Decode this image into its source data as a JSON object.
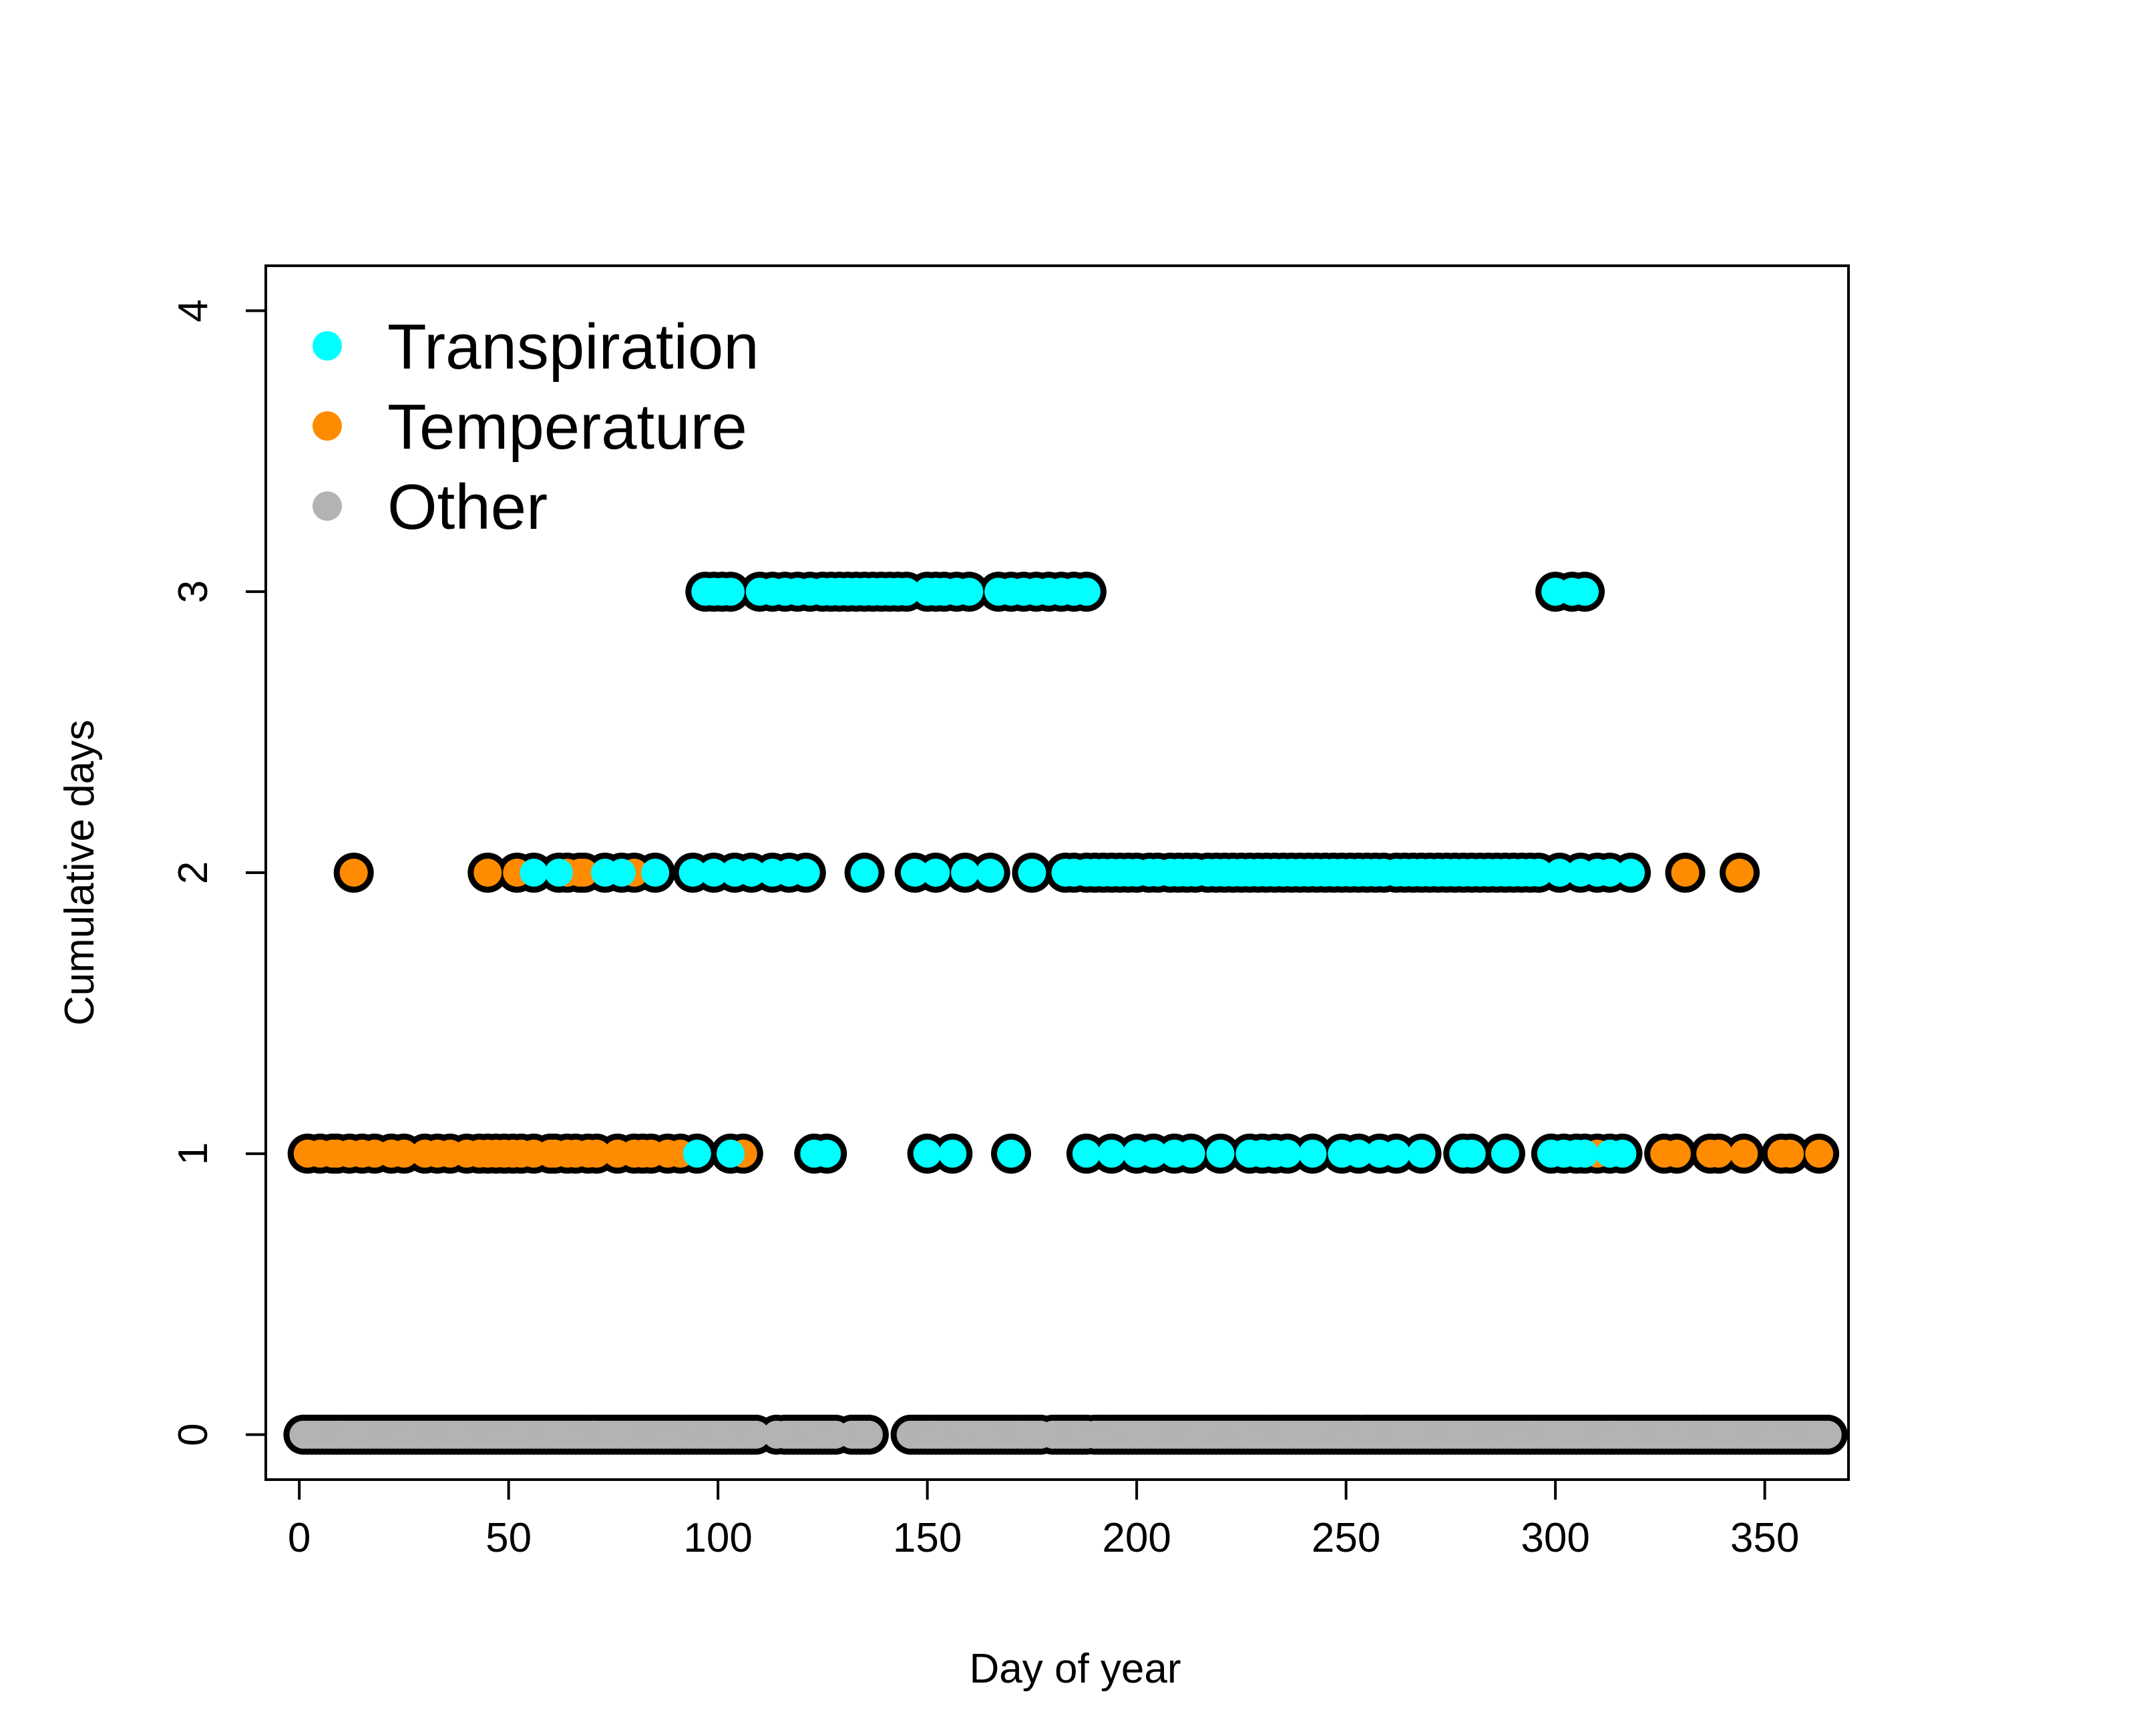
{
  "chart_data": {
    "type": "scatter",
    "title": "",
    "xlabel": "Day of year",
    "ylabel": "Cumulative days",
    "xlim": [
      -8,
      370
    ],
    "ylim": [
      -0.16,
      4.16
    ],
    "x_ticks": [
      0,
      50,
      100,
      150,
      200,
      250,
      300,
      350
    ],
    "y_ticks": [
      0,
      1,
      2,
      3,
      4
    ],
    "grid": false,
    "legend": {
      "position": "top-left",
      "entries": [
        {
          "label": "Transpiration",
          "color": "#00ffff"
        },
        {
          "label": "Temperature",
          "color": "#ff8c00"
        },
        {
          "label": "Other",
          "color": "#b3b3b3"
        }
      ]
    },
    "outline_color": "#000000",
    "series": [
      {
        "name": "Other",
        "color": "#b3b3b3",
        "y": 0,
        "x": [
          1,
          2,
          3,
          4,
          5,
          6,
          7,
          8,
          9,
          10,
          11,
          12,
          13,
          14,
          15,
          16,
          17,
          18,
          19,
          20,
          21,
          22,
          23,
          24,
          25,
          26,
          27,
          28,
          29,
          30,
          31,
          32,
          33,
          34,
          35,
          36,
          37,
          38,
          39,
          40,
          41,
          42,
          43,
          44,
          45,
          46,
          47,
          48,
          49,
          50,
          51,
          52,
          53,
          54,
          55,
          56,
          57,
          58,
          59,
          60,
          61,
          62,
          63,
          64,
          65,
          66,
          67,
          68,
          69,
          70,
          71,
          72,
          73,
          74,
          75,
          76,
          77,
          78,
          79,
          80,
          81,
          82,
          83,
          84,
          85,
          86,
          87,
          88,
          89,
          90,
          91,
          92,
          93,
          94,
          95,
          96,
          97,
          98,
          99,
          100,
          101,
          102,
          103,
          104,
          105,
          106,
          107,
          108,
          109,
          114,
          116,
          117,
          118,
          119,
          120,
          121,
          122,
          123,
          124,
          125,
          126,
          127,
          128,
          132,
          133,
          134,
          135,
          136,
          146,
          147,
          148,
          149,
          150,
          151,
          152,
          153,
          154,
          155,
          156,
          157,
          158,
          159,
          160,
          161,
          162,
          163,
          164,
          165,
          166,
          167,
          168,
          169,
          170,
          171,
          172,
          173,
          174,
          175,
          176,
          177,
          180,
          181,
          182,
          183,
          184,
          185,
          186,
          187,
          188,
          190,
          191,
          192,
          193,
          194,
          195,
          196,
          197,
          198,
          199,
          200,
          201,
          202,
          203,
          204,
          205,
          206,
          207,
          208,
          209,
          210,
          211,
          212,
          213,
          214,
          215,
          216,
          217,
          218,
          219,
          220,
          221,
          222,
          223,
          224,
          225,
          226,
          227,
          228,
          229,
          230,
          231,
          232,
          233,
          234,
          235,
          236,
          237,
          238,
          239,
          240,
          241,
          242,
          243,
          244,
          245,
          246,
          247,
          248,
          249,
          250,
          251,
          252,
          253,
          254,
          255,
          256,
          257,
          258,
          259,
          260,
          261,
          262,
          263,
          264,
          265,
          266,
          267,
          268,
          269,
          270,
          271,
          272,
          273,
          274,
          275,
          276,
          277,
          278,
          279,
          280,
          281,
          282,
          283,
          284,
          285,
          286,
          287,
          288,
          289,
          290,
          291,
          292,
          293,
          294,
          295,
          296,
          297,
          298,
          299,
          300,
          301,
          302,
          303,
          304,
          305,
          306,
          307,
          308,
          309,
          310,
          311,
          312,
          313,
          314,
          315,
          316,
          317,
          318,
          319,
          320,
          321,
          322,
          323,
          324,
          325,
          326,
          327,
          328,
          329,
          330,
          331,
          332,
          333,
          334,
          335,
          336,
          337,
          338,
          339,
          340,
          341,
          342,
          343,
          344,
          345,
          346,
          347,
          348,
          349,
          350,
          351,
          352,
          353,
          354,
          355,
          356,
          357,
          358,
          359,
          360,
          361,
          362,
          363,
          364,
          365
        ]
      },
      {
        "name": "Temperature",
        "color": "#ff8c00",
        "y": 1,
        "x": [
          2,
          5,
          8,
          9,
          12,
          15,
          18,
          22,
          25,
          30,
          33,
          36,
          40,
          43,
          45,
          47,
          49,
          51,
          53,
          56,
          60,
          61,
          64,
          66,
          69,
          71,
          76,
          80,
          82,
          84,
          88,
          91,
          106,
          310,
          326,
          329,
          337,
          339,
          345,
          354,
          356,
          363
        ]
      },
      {
        "name": "Transpiration",
        "color": "#00ffff",
        "y": 1,
        "x": [
          95,
          103,
          123,
          126,
          150,
          156,
          170,
          188,
          194,
          200,
          204,
          209,
          213,
          220,
          227,
          230,
          233,
          236,
          242,
          249,
          253,
          258,
          262,
          268,
          278,
          280,
          288,
          299,
          302,
          305,
          307,
          313,
          316
        ]
      },
      {
        "name": "Temperature",
        "color": "#ff8c00",
        "y": 2,
        "x": [
          13,
          45,
          52,
          64,
          67,
          68,
          80,
          331,
          344
        ]
      },
      {
        "name": "Transpiration",
        "color": "#00ffff",
        "y": 2,
        "x": [
          56,
          62,
          73,
          77,
          85,
          94,
          99,
          104,
          108,
          113,
          117,
          121,
          135,
          147,
          152,
          159,
          165,
          175,
          183,
          185,
          188,
          190,
          192,
          194,
          196,
          198,
          200,
          203,
          205,
          208,
          210,
          212,
          214,
          217,
          219,
          221,
          223,
          225,
          227,
          229,
          231,
          233,
          235,
          237,
          239,
          241,
          243,
          245,
          247,
          249,
          251,
          253,
          255,
          257,
          259,
          262,
          264,
          266,
          268,
          270,
          272,
          274,
          276,
          278,
          280,
          282,
          284,
          286,
          288,
          290,
          292,
          294,
          296,
          301,
          306,
          310,
          313,
          318
        ]
      },
      {
        "name": "Transpiration",
        "color": "#00ffff",
        "y": 3,
        "x": [
          97,
          99,
          101,
          103,
          110,
          113,
          116,
          119,
          122,
          125,
          127,
          129,
          131,
          133,
          135,
          137,
          139,
          141,
          143,
          145,
          150,
          152,
          154,
          157,
          160,
          167,
          170,
          173,
          176,
          179,
          182,
          185,
          188,
          300,
          304,
          307
        ]
      }
    ]
  }
}
